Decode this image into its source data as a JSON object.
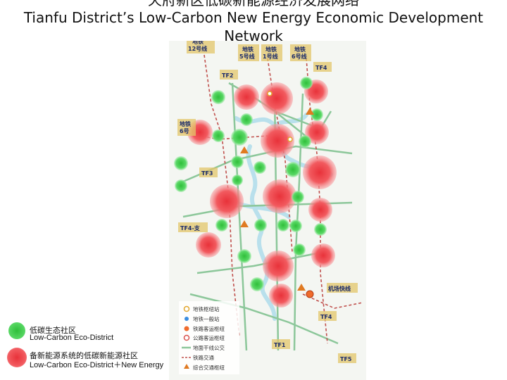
{
  "title": {
    "cn": "天府新区低碳新能源经济发展网络",
    "en_line1": "Tianfu District’s Low-Carbon New Energy Economic Development",
    "en_line2": "Network"
  },
  "legend": [
    {
      "cn": "低碳生态社区",
      "en": "Low-Carbon Eco-District",
      "color": "#3ecf4a"
    },
    {
      "cn": "备新能源系统的低碳新能源社区",
      "en": "Low-Carbon Eco-District＋New Energy",
      "color": "#f2474d"
    }
  ],
  "map_labels": {
    "metro12": "地铁\n12号线",
    "metro5": "地铁\n5号线",
    "metro1": "地铁\n1号线",
    "metro6": "地铁\n6号线",
    "metro6_side": "地铁\n6号",
    "tf2": "TF2",
    "tf3": "TF3",
    "tf4": "TF4",
    "tf4_branch": "TF4-支",
    "tf4_lower": "TF4",
    "tf1": "TF1",
    "tf5": "TF5",
    "airport_express": "机场快线"
  },
  "map_legend": [
    {
      "label": "地铁枢纽站",
      "icon": "hub-station-icon"
    },
    {
      "label": "地铁一般站",
      "icon": "metro-station-icon"
    },
    {
      "label": "铁路客运枢纽",
      "icon": "rail-hub-icon"
    },
    {
      "label": "公路客运枢纽",
      "icon": "bus-hub-icon"
    },
    {
      "label": "地面干线公交",
      "icon": "bus-line-icon"
    },
    {
      "label": "铁路交通",
      "icon": "railway-icon"
    },
    {
      "label": "综合交通枢纽",
      "icon": "transport-hub-icon"
    }
  ],
  "colors": {
    "green": "#3ecf4a",
    "red": "#f2474d",
    "river": "#bfe3ee",
    "road": "#8cc79a",
    "rail": "#c0504d",
    "label_bg": "#e3c56a"
  }
}
